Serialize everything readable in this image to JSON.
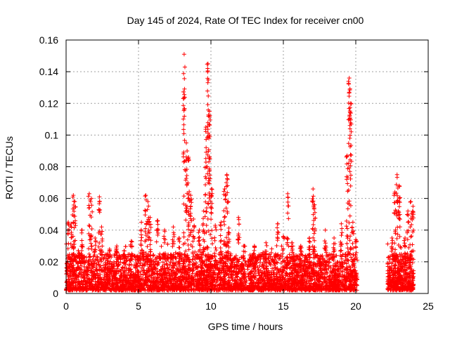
{
  "chart_data": {
    "type": "scatter",
    "title": "Day 145 of 2024, Rate Of TEC Index for receiver cn00",
    "xlabel": "GPS time / hours",
    "ylabel": "ROTI / TECUs",
    "xlim": [
      0,
      25
    ],
    "ylim": [
      0,
      0.16
    ],
    "xticks": [
      0,
      5,
      10,
      15,
      20,
      25
    ],
    "yticks": [
      0,
      0.02,
      0.04,
      0.06,
      0.08,
      0.1,
      0.12,
      0.14,
      0.16
    ],
    "ytick_labels": [
      "0",
      "0.02",
      "0.04",
      "0.06",
      "0.08",
      "0.1",
      "0.12",
      "0.14",
      "0.16"
    ],
    "grid": true,
    "marker": "+",
    "series_color": "#ff0000",
    "data_gap_hours": [
      20.1,
      22.2
    ],
    "baseline": {
      "min": 0.002,
      "typical_max": 0.025,
      "segments": [
        [
          0,
          20.1
        ],
        [
          22.2,
          24.0
        ]
      ]
    },
    "spikes": [
      {
        "x": 0.15,
        "max": 0.045
      },
      {
        "x": 0.35,
        "max": 0.044
      },
      {
        "x": 0.5,
        "max": 0.062
      },
      {
        "x": 0.6,
        "max": 0.058
      },
      {
        "x": 1.1,
        "max": 0.04
      },
      {
        "x": 1.6,
        "max": 0.063
      },
      {
        "x": 1.75,
        "max": 0.06
      },
      {
        "x": 2.0,
        "max": 0.035
      },
      {
        "x": 2.3,
        "max": 0.061
      },
      {
        "x": 2.45,
        "max": 0.042
      },
      {
        "x": 3.0,
        "max": 0.028
      },
      {
        "x": 3.5,
        "max": 0.03
      },
      {
        "x": 4.0,
        "max": 0.027
      },
      {
        "x": 4.5,
        "max": 0.033
      },
      {
        "x": 5.2,
        "max": 0.045
      },
      {
        "x": 5.5,
        "max": 0.062
      },
      {
        "x": 5.65,
        "max": 0.058
      },
      {
        "x": 5.8,
        "max": 0.048
      },
      {
        "x": 6.3,
        "max": 0.046
      },
      {
        "x": 6.8,
        "max": 0.04
      },
      {
        "x": 7.4,
        "max": 0.042
      },
      {
        "x": 7.8,
        "max": 0.035
      },
      {
        "x": 8.15,
        "max": 0.151
      },
      {
        "x": 8.3,
        "max": 0.095
      },
      {
        "x": 8.45,
        "max": 0.086
      },
      {
        "x": 8.6,
        "max": 0.062
      },
      {
        "x": 8.8,
        "max": 0.047
      },
      {
        "x": 9.2,
        "max": 0.04
      },
      {
        "x": 9.5,
        "max": 0.052
      },
      {
        "x": 9.65,
        "max": 0.105
      },
      {
        "x": 9.8,
        "max": 0.145
      },
      {
        "x": 9.9,
        "max": 0.115
      },
      {
        "x": 10.05,
        "max": 0.066
      },
      {
        "x": 10.3,
        "max": 0.043
      },
      {
        "x": 10.7,
        "max": 0.045
      },
      {
        "x": 10.95,
        "max": 0.066
      },
      {
        "x": 11.1,
        "max": 0.075
      },
      {
        "x": 11.2,
        "max": 0.058
      },
      {
        "x": 11.9,
        "max": 0.048
      },
      {
        "x": 12.3,
        "max": 0.03
      },
      {
        "x": 13.0,
        "max": 0.03
      },
      {
        "x": 13.8,
        "max": 0.032
      },
      {
        "x": 14.6,
        "max": 0.044
      },
      {
        "x": 15.0,
        "max": 0.036
      },
      {
        "x": 15.3,
        "max": 0.063
      },
      {
        "x": 15.6,
        "max": 0.032
      },
      {
        "x": 16.2,
        "max": 0.03
      },
      {
        "x": 16.8,
        "max": 0.035
      },
      {
        "x": 17.05,
        "max": 0.066
      },
      {
        "x": 17.15,
        "max": 0.056
      },
      {
        "x": 17.9,
        "max": 0.04
      },
      {
        "x": 18.5,
        "max": 0.035
      },
      {
        "x": 19.0,
        "max": 0.044
      },
      {
        "x": 19.4,
        "max": 0.087
      },
      {
        "x": 19.55,
        "max": 0.136
      },
      {
        "x": 19.65,
        "max": 0.12
      },
      {
        "x": 19.8,
        "max": 0.045
      },
      {
        "x": 20.0,
        "max": 0.034
      },
      {
        "x": 22.5,
        "max": 0.035
      },
      {
        "x": 22.7,
        "max": 0.064
      },
      {
        "x": 22.85,
        "max": 0.075
      },
      {
        "x": 23.0,
        "max": 0.068
      },
      {
        "x": 23.4,
        "max": 0.035
      },
      {
        "x": 23.6,
        "max": 0.052
      },
      {
        "x": 23.8,
        "max": 0.058
      },
      {
        "x": 23.95,
        "max": 0.055
      }
    ]
  }
}
